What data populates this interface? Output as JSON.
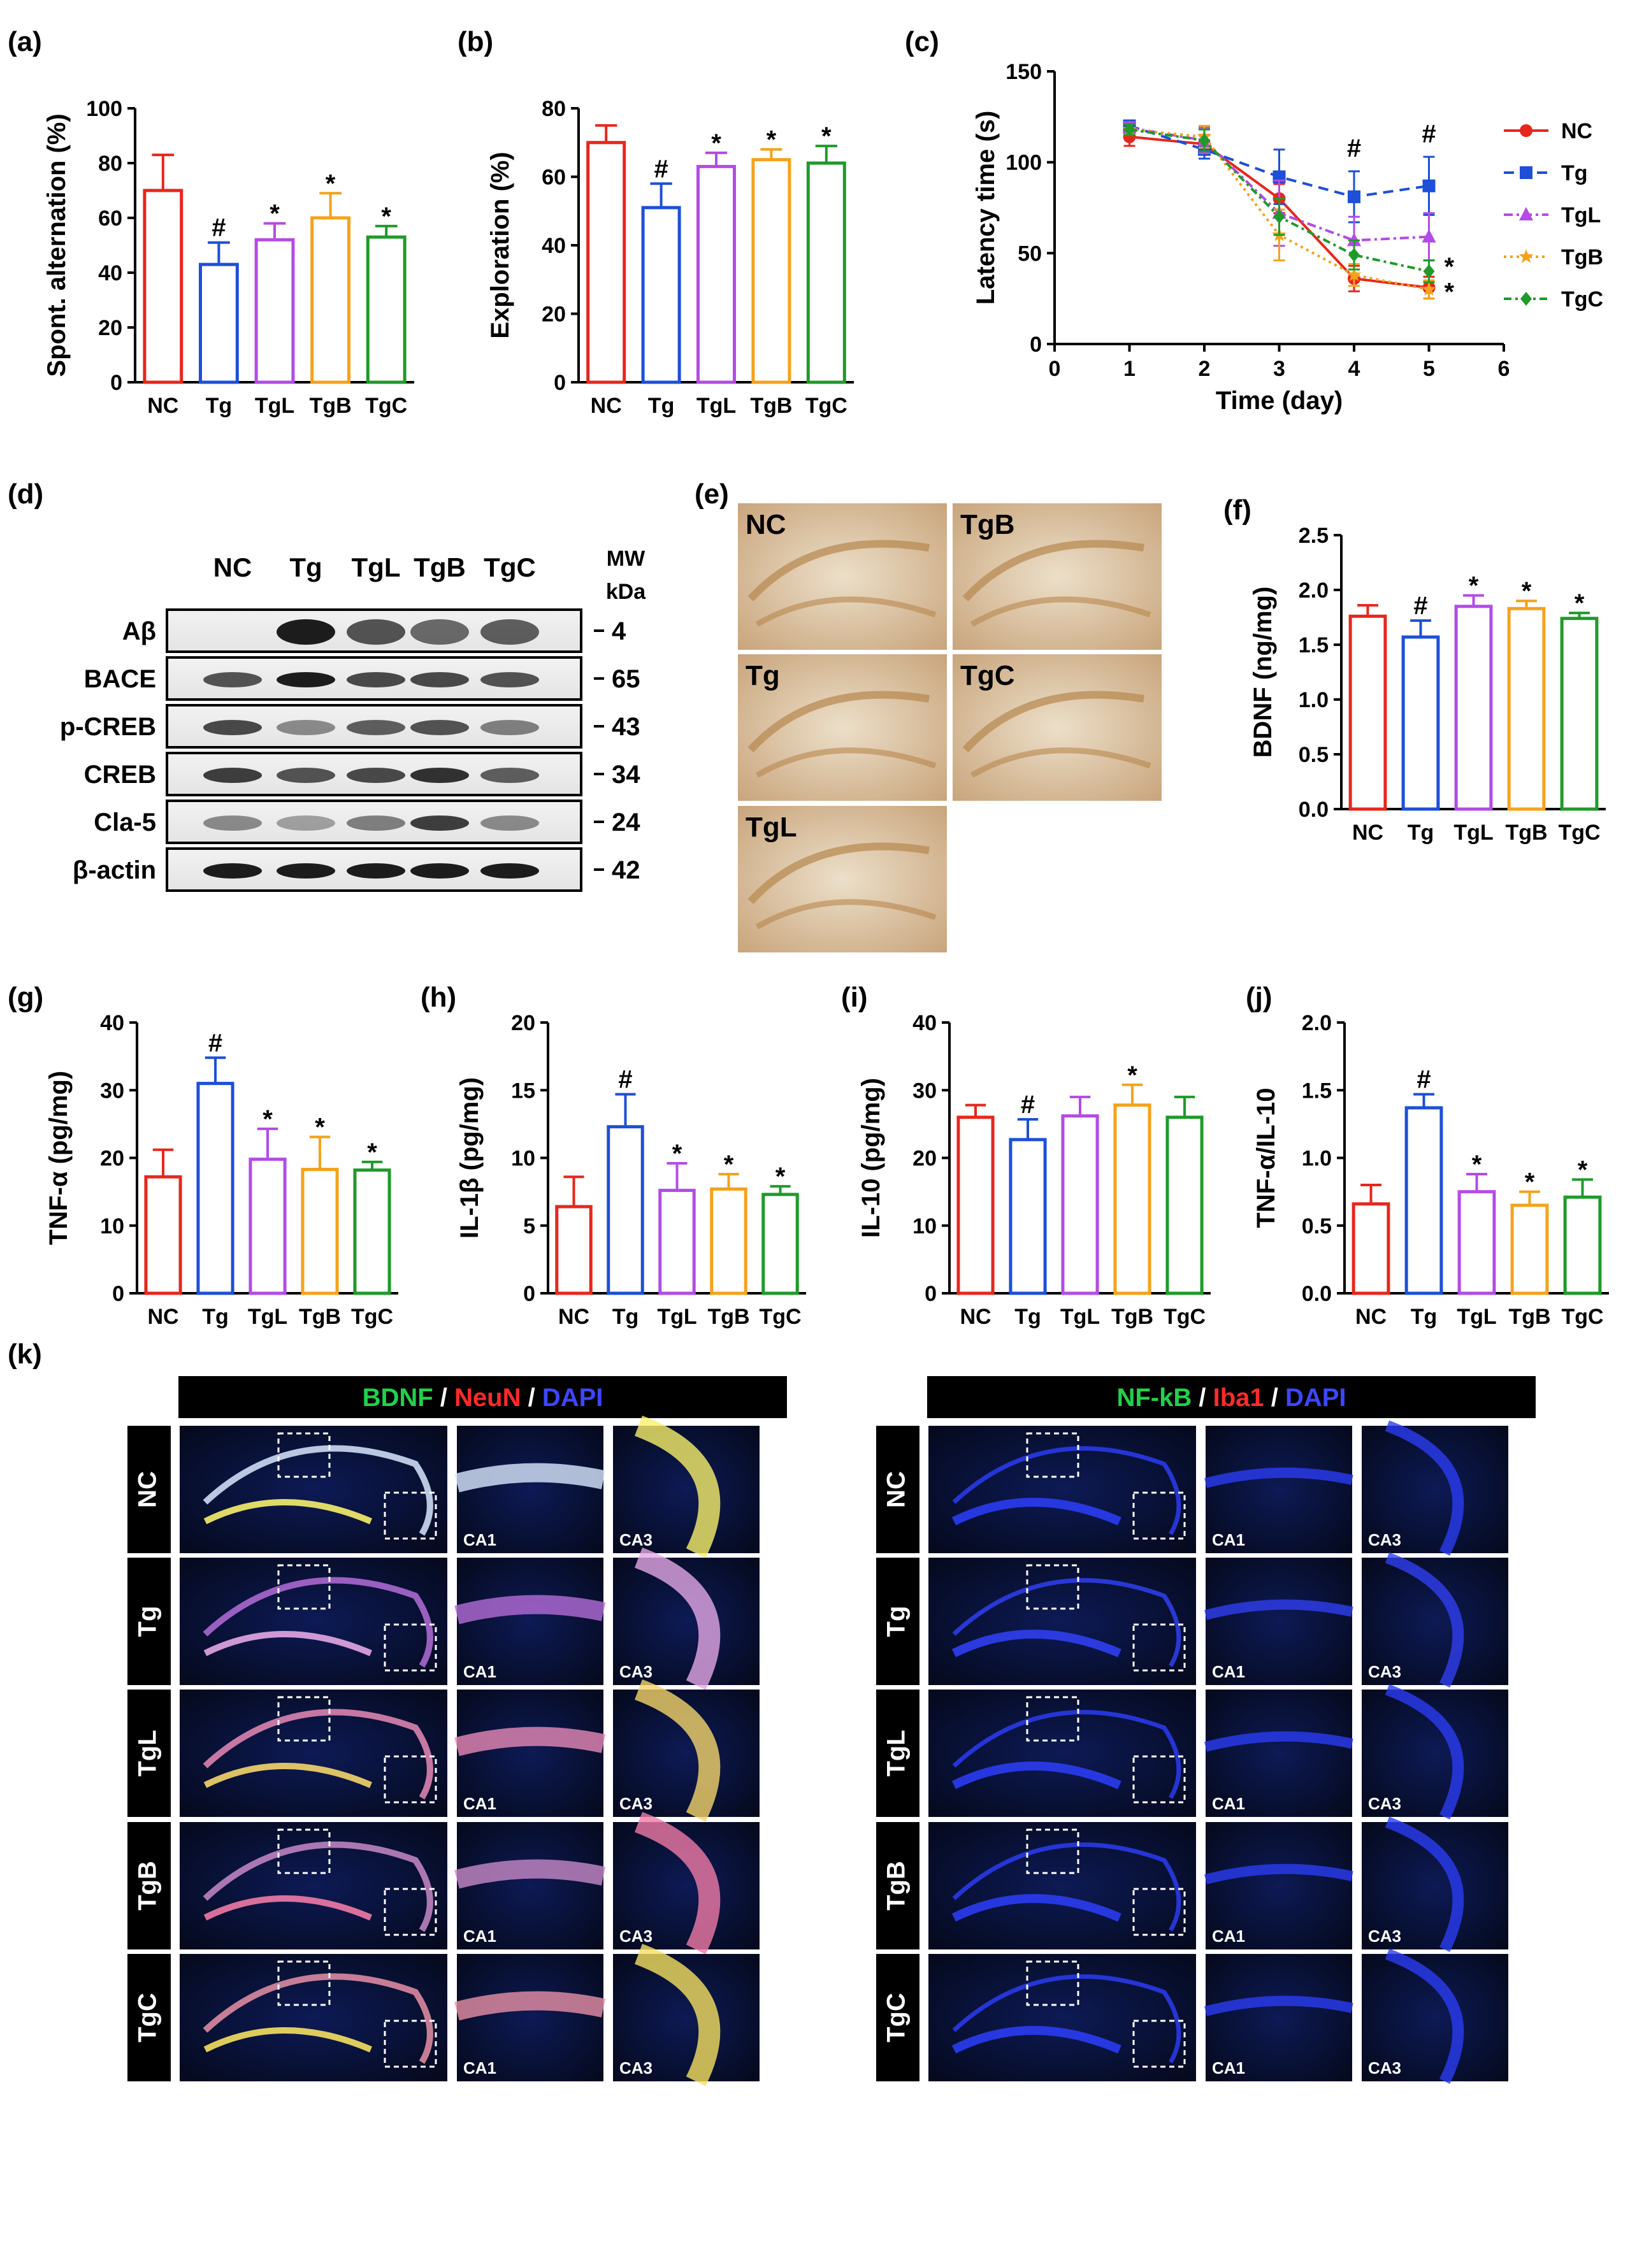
{
  "panels": {
    "a": "(a)",
    "b": "(b)",
    "c": "(c)",
    "d": "(d)",
    "e": "(e)",
    "f": "(f)",
    "g": "(g)",
    "h": "(h)",
    "i": "(i)",
    "j": "(j)",
    "k": "(k)"
  },
  "colors": {
    "NC": "#e8261c",
    "Tg": "#1d4fd8",
    "TgL": "#b44be6",
    "TgB": "#f5a21b",
    "TgC": "#1f9a2a"
  },
  "chart_data": [
    {
      "id": "a",
      "type": "bar",
      "ylabel": "Spont. alternation (%)",
      "categories": [
        "NC",
        "Tg",
        "TgL",
        "TgB",
        "TgC"
      ],
      "values": [
        70,
        43,
        52,
        60,
        53
      ],
      "errors": [
        13,
        8,
        6,
        9,
        4
      ],
      "marks": [
        "",
        "#",
        "*",
        "*",
        "*"
      ],
      "ylim": [
        0,
        100
      ],
      "yticks": [
        0,
        20,
        40,
        60,
        80,
        100
      ]
    },
    {
      "id": "b",
      "type": "bar",
      "ylabel": "Exploration (%)",
      "categories": [
        "NC",
        "Tg",
        "TgL",
        "TgB",
        "TgC"
      ],
      "values": [
        70,
        51,
        63,
        65,
        64
      ],
      "errors": [
        5,
        7,
        4,
        3,
        5
      ],
      "marks": [
        "",
        "#",
        "*",
        "*",
        "*"
      ],
      "ylim": [
        0,
        80
      ],
      "yticks": [
        0,
        20,
        40,
        60,
        80
      ]
    },
    {
      "id": "c",
      "type": "line",
      "ylabel": "Latency time (s)",
      "xlabel": "Time (day)",
      "xlim": [
        0,
        6
      ],
      "xticks": [
        0,
        1,
        2,
        3,
        4,
        5,
        6
      ],
      "ylim": [
        0,
        150
      ],
      "yticks": [
        0,
        50,
        100,
        150
      ],
      "x": [
        1,
        2,
        3,
        4,
        5
      ],
      "series": [
        {
          "name": "NC",
          "values": [
            114,
            110,
            80,
            36,
            31
          ],
          "errors": [
            5,
            5,
            8,
            7,
            6
          ],
          "marker": "circle",
          "dash": ""
        },
        {
          "name": "Tg",
          "values": [
            120,
            107,
            92,
            81,
            87
          ],
          "errors": [
            3,
            5,
            15,
            14,
            16
          ],
          "marker": "square",
          "dash": "16,10"
        },
        {
          "name": "TgL",
          "values": [
            119,
            112,
            72,
            57,
            59
          ],
          "errors": [
            3,
            7,
            18,
            13,
            13
          ],
          "marker": "triangle",
          "dash": "14,6,4,6"
        },
        {
          "name": "TgB",
          "values": [
            118,
            114,
            60,
            38,
            30
          ],
          "errors": [
            3,
            6,
            14,
            6,
            5
          ],
          "marker": "star",
          "dash": "4,6"
        },
        {
          "name": "TgC",
          "values": [
            118,
            112,
            70,
            49,
            40
          ],
          "errors": [
            3,
            6,
            10,
            8,
            6
          ],
          "marker": "diamond",
          "dash": "12,6,4,6"
        }
      ],
      "annotations": [
        {
          "x": 4,
          "text": "#",
          "y": 103
        },
        {
          "x": 5,
          "text": "#",
          "y": 111
        }
      ],
      "end_marks": [
        "*",
        "*"
      ]
    },
    {
      "id": "f",
      "type": "bar",
      "ylabel": "BDNF (ng/mg)",
      "categories": [
        "NC",
        "Tg",
        "TgL",
        "TgB",
        "TgC"
      ],
      "values": [
        1.76,
        1.57,
        1.85,
        1.83,
        1.74
      ],
      "errors": [
        0.1,
        0.15,
        0.1,
        0.07,
        0.05
      ],
      "marks": [
        "",
        "#",
        "*",
        "*",
        "*"
      ],
      "ylim": [
        0,
        2.5
      ],
      "yticks": [
        "0.0",
        "0.5",
        "1.0",
        "1.5",
        "2.0",
        "2.5"
      ]
    },
    {
      "id": "g",
      "type": "bar",
      "ylabel": "TNF-α (pg/mg)",
      "categories": [
        "NC",
        "Tg",
        "TgL",
        "TgB",
        "TgC"
      ],
      "values": [
        17.2,
        31,
        19.8,
        18.3,
        18.2
      ],
      "errors": [
        4,
        3.8,
        4.5,
        4.8,
        1.2
      ],
      "marks": [
        "",
        "#",
        "*",
        "*",
        "*"
      ],
      "ylim": [
        0,
        40
      ],
      "yticks": [
        0,
        10,
        20,
        30,
        40
      ]
    },
    {
      "id": "h",
      "type": "bar",
      "ylabel": "IL-1β (pg/mg)",
      "categories": [
        "NC",
        "Tg",
        "TgL",
        "TgB",
        "TgC"
      ],
      "values": [
        6.4,
        12.3,
        7.6,
        7.7,
        7.3
      ],
      "errors": [
        2.2,
        2.4,
        2,
        1.1,
        0.6
      ],
      "marks": [
        "",
        "#",
        "*",
        "*",
        "*"
      ],
      "ylim": [
        0,
        20
      ],
      "yticks": [
        0,
        5,
        10,
        15,
        20
      ]
    },
    {
      "id": "i",
      "type": "bar",
      "ylabel": "IL-10 (pg/mg)",
      "categories": [
        "NC",
        "Tg",
        "TgL",
        "TgB",
        "TgC"
      ],
      "values": [
        26,
        22.7,
        26.2,
        27.8,
        26
      ],
      "errors": [
        1.8,
        3,
        2.8,
        3,
        3
      ],
      "marks": [
        "",
        "#",
        "",
        "*",
        ""
      ],
      "ylim": [
        0,
        40
      ],
      "yticks": [
        0,
        10,
        20,
        30,
        40
      ]
    },
    {
      "id": "j",
      "type": "bar",
      "ylabel": "TNF-α/IL-10",
      "categories": [
        "NC",
        "Tg",
        "TgL",
        "TgB",
        "TgC"
      ],
      "values": [
        0.66,
        1.37,
        0.75,
        0.65,
        0.71
      ],
      "errors": [
        0.14,
        0.1,
        0.13,
        0.1,
        0.13
      ],
      "marks": [
        "",
        "#",
        "*",
        "*",
        "*"
      ],
      "ylim": [
        0,
        2
      ],
      "yticks": [
        "0.0",
        "0.5",
        "1.0",
        "1.5",
        "2.0"
      ]
    }
  ],
  "western_blot": {
    "groups": [
      "NC",
      "Tg",
      "TgL",
      "TgB",
      "TgC"
    ],
    "mw_label": "MW",
    "kda_label": "kDa",
    "bands": [
      {
        "name": "Aβ",
        "mw": "4"
      },
      {
        "name": "BACE",
        "mw": "65"
      },
      {
        "name": "p-CREB",
        "mw": "43"
      },
      {
        "name": "CREB",
        "mw": "34"
      },
      {
        "name": "Cla-5",
        "mw": "24"
      },
      {
        "name": "β-actin",
        "mw": "42"
      }
    ],
    "intensity": [
      [
        0.05,
        0.95,
        0.7,
        0.6,
        0.65
      ],
      [
        0.7,
        0.95,
        0.75,
        0.75,
        0.7
      ],
      [
        0.75,
        0.45,
        0.65,
        0.7,
        0.5
      ],
      [
        0.8,
        0.7,
        0.75,
        0.85,
        0.65
      ],
      [
        0.45,
        0.35,
        0.5,
        0.8,
        0.45
      ],
      [
        0.95,
        0.95,
        0.95,
        0.95,
        0.95
      ]
    ]
  },
  "ihc_labels": [
    "NC",
    "TgB",
    "Tg",
    "TgC",
    "TgL"
  ],
  "k_titles": {
    "left": [
      {
        "t": "BDNF",
        "c": "#1fd24a"
      },
      {
        "t": " / ",
        "c": "#ffffff"
      },
      {
        "t": "NeuN",
        "c": "#ff2a2a"
      },
      {
        "t": " / ",
        "c": "#ffffff"
      },
      {
        "t": "DAPI",
        "c": "#3c46ff"
      }
    ],
    "right": [
      {
        "t": "NF-kB",
        "c": "#1fd24a"
      },
      {
        "t": " / ",
        "c": "#ffffff"
      },
      {
        "t": "Iba1",
        "c": "#ff2a2a"
      },
      {
        "t": " / ",
        "c": "#ffffff"
      },
      {
        "t": "DAPI",
        "c": "#3c46ff"
      }
    ]
  },
  "k_rows": [
    "NC",
    "Tg",
    "TgL",
    "TgB",
    "TgC"
  ],
  "k_regions": [
    "CA1",
    "CA3"
  ]
}
